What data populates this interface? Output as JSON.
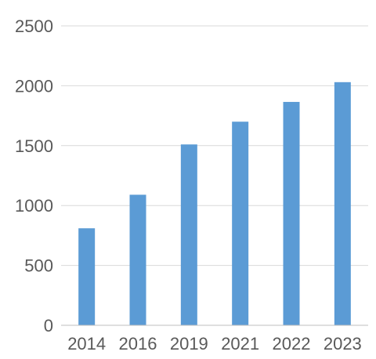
{
  "chart_data": {
    "type": "bar",
    "categories": [
      "2014",
      "2016",
      "2019",
      "2021",
      "2022",
      "2023"
    ],
    "values": [
      810,
      1090,
      1510,
      1700,
      1865,
      2030
    ],
    "ylim": [
      0,
      2500
    ],
    "yticks": [
      0,
      500,
      1000,
      1500,
      2000,
      2500
    ],
    "grid": true,
    "bar_color": "#5b9bd5",
    "grid_color": "#d9d9d9",
    "text_color": "#595959"
  }
}
